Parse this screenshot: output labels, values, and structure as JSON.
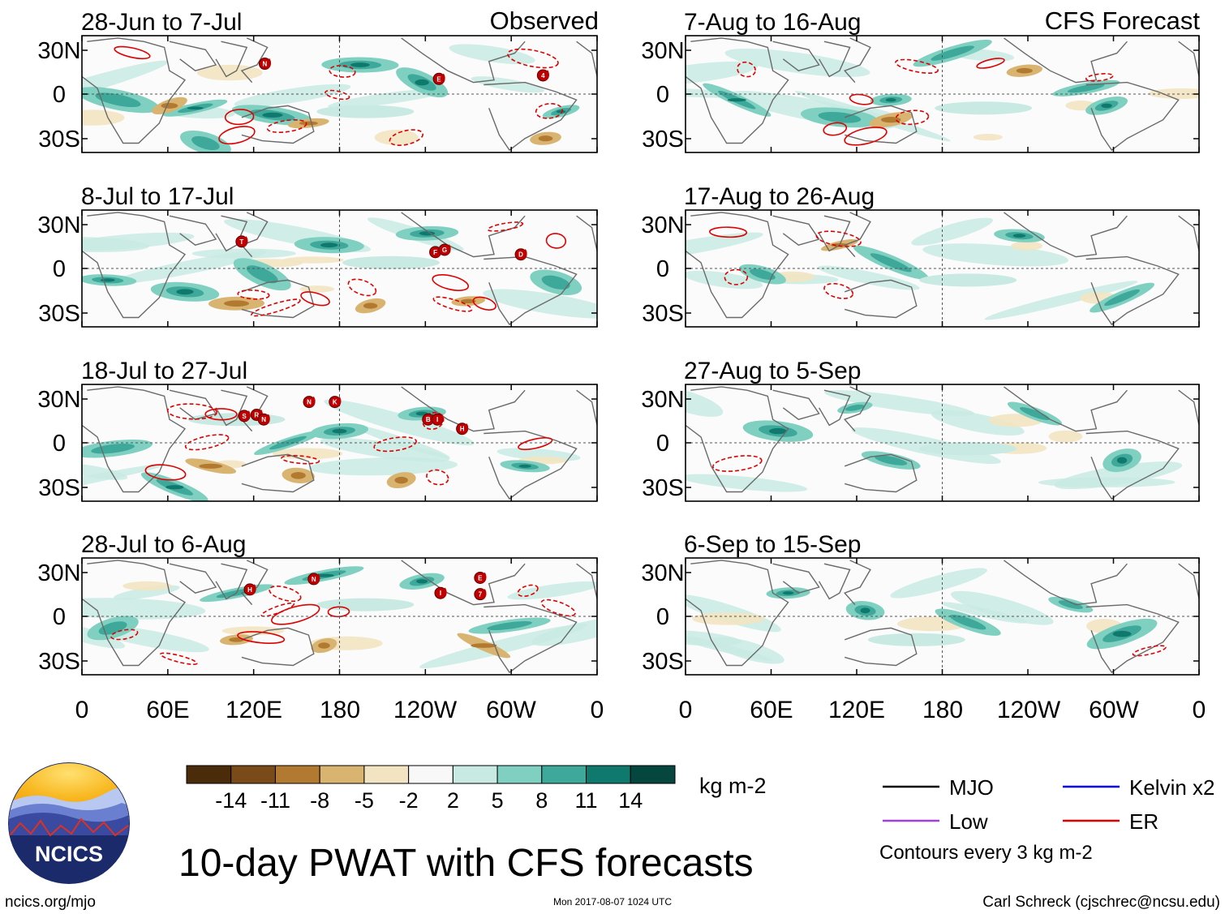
{
  "columns": [
    {
      "heading": "Observed",
      "panels": [
        {
          "period": "28-Jun to 7-Jul",
          "storm_labels": [
            "N",
            "E",
            "4"
          ]
        },
        {
          "period": "8-Jul to 17-Jul",
          "storm_labels": [
            "T",
            "F",
            "G",
            "D"
          ]
        },
        {
          "period": "18-Jul to 27-Jul",
          "storm_labels": [
            "S",
            "R",
            "N",
            "N",
            "K",
            "B",
            "I",
            "H"
          ]
        },
        {
          "period": "28-Jul to 6-Aug",
          "storm_labels": [
            "H",
            "N",
            "I",
            "E",
            "7"
          ]
        }
      ]
    },
    {
      "heading": "CFS Forecast",
      "panels": [
        {
          "period": "7-Aug to 16-Aug",
          "storm_labels": []
        },
        {
          "period": "17-Aug to 26-Aug",
          "storm_labels": []
        },
        {
          "period": "27-Aug to 5-Sep",
          "storm_labels": []
        },
        {
          "period": "6-Sep to 15-Sep",
          "storm_labels": []
        }
      ]
    }
  ],
  "lat_labels": [
    "30N",
    "0",
    "30S"
  ],
  "lon_labels": [
    "0",
    "60E",
    "120E",
    "180",
    "120W",
    "60W",
    "0"
  ],
  "colorbar": {
    "colors": [
      "#4a2c0a",
      "#7a4a18",
      "#b27a30",
      "#d9b370",
      "#f2e4c2",
      "#f8f8f8",
      "#c8eae3",
      "#7fd0c1",
      "#3ea89a",
      "#10796e",
      "#05463f"
    ],
    "tick_labels": [
      "-14",
      "-11",
      "-8",
      "-5",
      "-2",
      "2",
      "5",
      "8",
      "11",
      "14"
    ],
    "units": "kg m-2"
  },
  "legend": {
    "items": [
      {
        "label": "MJO",
        "color": "#000000"
      },
      {
        "label": "Kelvin x2",
        "color": "#0000ff"
      },
      {
        "label": "Low",
        "color": "#a040e0"
      },
      {
        "label": "ER",
        "color": "#e00000"
      }
    ],
    "note": "Contours every 3 kg m-2"
  },
  "title": "10-day PWAT with CFS forecasts",
  "logo_text": "NCICS",
  "footer": {
    "site": "ncics.org/mjo",
    "timestamp": "Mon 2017-08-07 1024 UTC",
    "credit": "Carl Schreck (cjschrec@ncsu.edu)"
  },
  "colors": {
    "contour": "#e00000",
    "coast": "#6a6a6a",
    "cyclone": "#c00000"
  }
}
